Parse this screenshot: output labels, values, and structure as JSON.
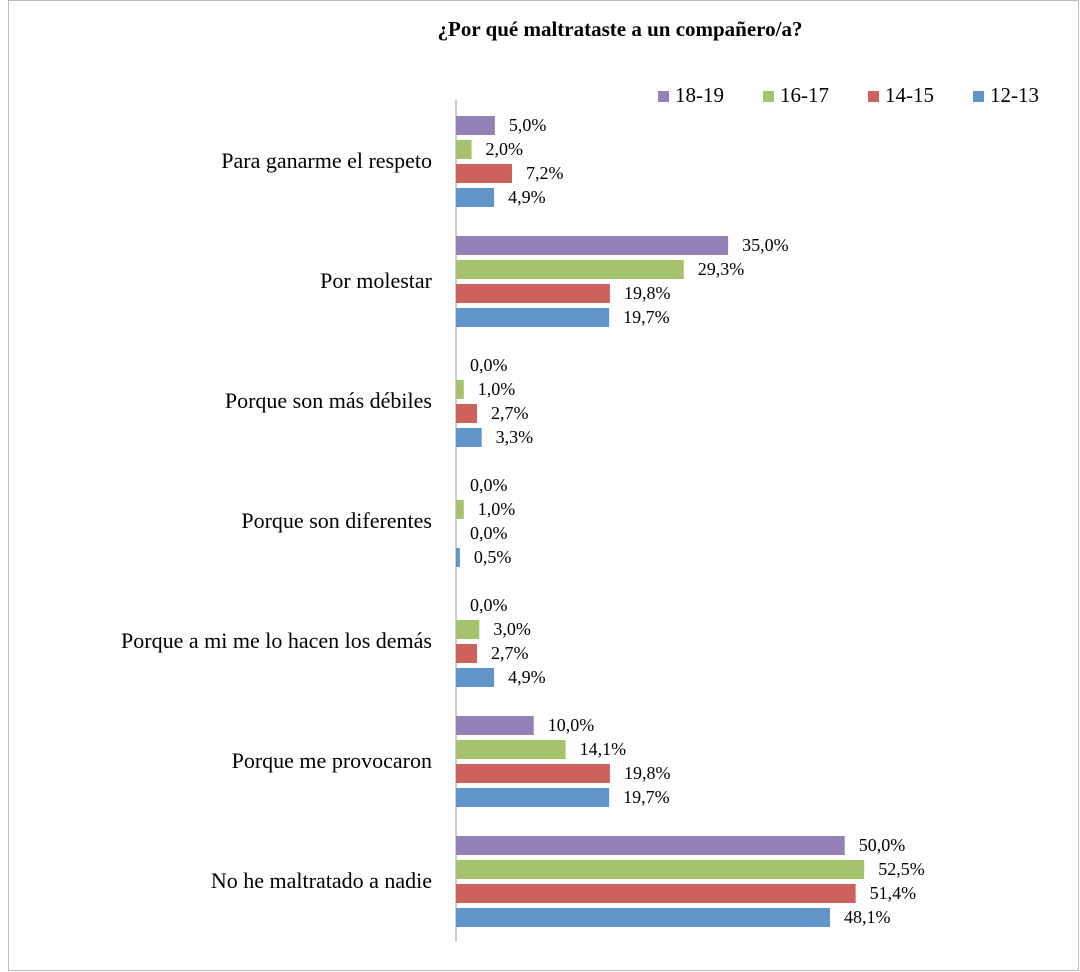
{
  "chart_data": {
    "type": "bar",
    "orientation": "horizontal",
    "title": "¿Por qué maltrataste a un compañero/a?",
    "categories": [
      "Para ganarme el respeto",
      "Por molestar",
      "Porque son más débiles",
      "Porque son diferentes",
      "Porque a  mi me lo hacen los demás",
      "Porque me provocaron",
      "No he maltratado a nadie"
    ],
    "xlim": [
      0,
      80
    ],
    "series": [
      {
        "name": "18-19",
        "color": "#9580b8",
        "values": [
          5.0,
          35.0,
          0.0,
          0.0,
          0.0,
          10.0,
          50.0
        ],
        "value_labels": [
          "5,0%",
          "35,0%",
          "0,0%",
          "0,0%",
          "0,0%",
          "10,0%",
          "50,0%"
        ]
      },
      {
        "name": "16-17",
        "color": "#a5c36c",
        "values": [
          2.0,
          29.3,
          1.0,
          1.0,
          3.0,
          14.1,
          52.5
        ],
        "value_labels": [
          "2,0%",
          "29,3%",
          "1,0%",
          "1,0%",
          "3,0%",
          "14,1%",
          "52,5%"
        ]
      },
      {
        "name": "14-15",
        "color": "#cd625d",
        "values": [
          7.2,
          19.8,
          2.7,
          0.0,
          2.7,
          19.8,
          51.4
        ],
        "value_labels": [
          "7,2%",
          "19,8%",
          "2,7%",
          "0,0%",
          "2,7%",
          "19,8%",
          "51,4%"
        ]
      },
      {
        "name": "12-13",
        "color": "#5f95c9",
        "values": [
          4.9,
          19.7,
          3.3,
          0.5,
          4.9,
          19.7,
          48.1
        ],
        "value_labels": [
          "4,9%",
          "19,7%",
          "3,3%",
          "0,5%",
          "4,9%",
          "19,7%",
          "48,1%"
        ]
      }
    ],
    "legend": "top-right",
    "grid": false
  }
}
